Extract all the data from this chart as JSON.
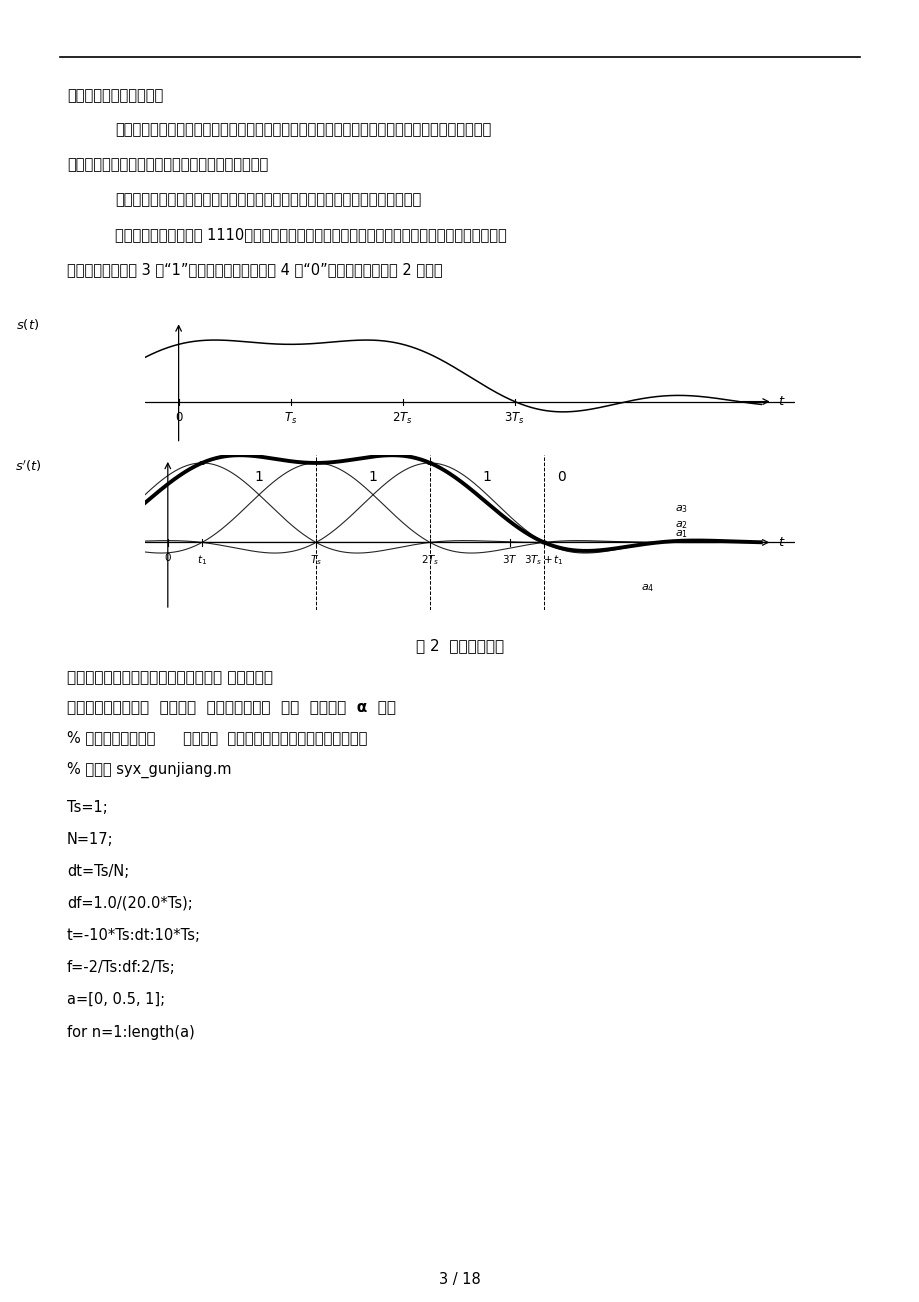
{
  "page_bg": "#ffffff",
  "text_color": "#000000",
  "para1": "是码间串扰和信道噪声。",
  "para2": "码间串扰的定义：由于系统传输特性不良或加性噪声的影响，使信号波形发生畜变，造成收端判决",
  "para2b": "上的困难，因而造成误码，这种现象称为码间串扰。",
  "para3": "发生码间串扰时，脉冲会被展宽，甚至重辭（串扰）到邻近时隙中去成为干扰。",
  "para4": "假如传输的一组码元是 1110、采用双极性码、经发送滤波器后变为升余弦波形所示。经过信道后",
  "para4b": "产生码间串扰，前 3 个“1”码的拖尾相继侵入到第 4 个“0”码的时隙中，如图 2 所示。",
  "fig_caption": "图 2  码间串扰示意",
  "bold_line1": "升余弦升余弦滚降特性（数字基带信号 码间串扰）",
  "bold_line2": "标签：数字基带信号  码间串扰  升余弦滚降系统  频谱  时域波形  α  杂谈",
  "code_line1": "% 数字基带信号传输      码间串扰  升余弦滚降系统的频谱及其时域波形",
  "code_line2": "% 文件名 syx_gunjiang.m",
  "code_line3": "Ts=1;",
  "code_line4": "N=17;",
  "code_line5": "dt=Ts/N;",
  "code_line6": "df=1.0/(20.0*Ts);",
  "code_line7": "t=-10*Ts:dt:10*Ts;",
  "code_line8": "f=-2/Ts:df:2/Ts;",
  "code_line9": "a=[0, 0.5, 1];",
  "code_line10": "for n=1:length(a)",
  "page_number": "3 / 18"
}
